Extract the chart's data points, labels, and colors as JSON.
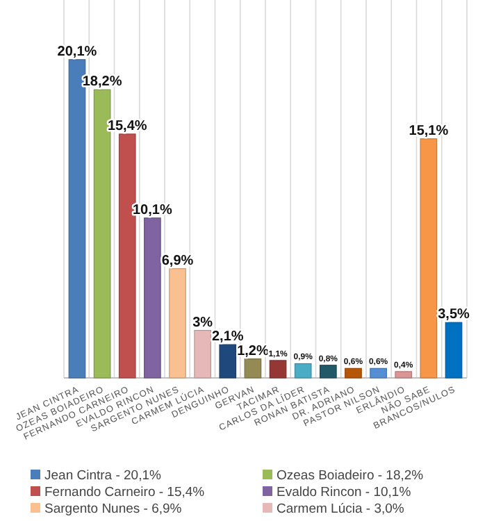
{
  "chart_data": {
    "type": "bar",
    "categories": [
      "JEAN CINTRA",
      "OZEAS BOIADEIRO",
      "FERNANDO CARNEIRO",
      "EVALDO RINCON",
      "SARGENTO NUNES",
      "CARMEM LÚCIA",
      "DENGUINHO",
      "GERVAN",
      "TACIMAR",
      "CARLOS DA LÍDER",
      "RONAN BATISTA",
      "DR. ADRIANO",
      "PASTOR NILSON",
      "ERLÂNDIO",
      "NÃO SABE",
      "BRANCOS/NULOS"
    ],
    "series": [
      {
        "name": "Jean Cintra - 20,1%",
        "color": "#4a7ebb",
        "values": [
          20.1,
          null,
          null,
          null,
          null,
          null,
          null,
          null,
          null,
          null,
          null,
          null,
          null,
          null,
          null,
          null
        ],
        "value_labels": [
          "20,1%",
          null,
          null,
          null,
          null,
          null,
          null,
          null,
          null,
          null,
          null,
          null,
          null,
          null,
          null,
          null
        ]
      },
      {
        "name": "Ozeas Boiadeiro - 18,2%",
        "color": "#9bbb59",
        "values": [
          null,
          18.2,
          null,
          null,
          null,
          null,
          null,
          null,
          null,
          null,
          null,
          null,
          null,
          null,
          null,
          null
        ],
        "value_labels": [
          null,
          "18,2%",
          null,
          null,
          null,
          null,
          null,
          null,
          null,
          null,
          null,
          null,
          null,
          null,
          null,
          null
        ]
      },
      {
        "name": "Fernando Carneiro - 15,4%",
        "color": "#c0504d",
        "values": [
          null,
          null,
          15.4,
          null,
          null,
          null,
          null,
          null,
          null,
          null,
          null,
          null,
          null,
          null,
          null,
          null
        ],
        "value_labels": [
          null,
          null,
          "15,4%",
          null,
          null,
          null,
          null,
          null,
          null,
          null,
          null,
          null,
          null,
          null,
          null,
          null
        ]
      },
      {
        "name": "Evaldo Rincon - 10,1%",
        "color": "#8064a2",
        "values": [
          null,
          null,
          null,
          10.1,
          null,
          null,
          null,
          null,
          null,
          null,
          null,
          null,
          null,
          null,
          null,
          null
        ],
        "value_labels": [
          null,
          null,
          null,
          "10,1%",
          null,
          null,
          null,
          null,
          null,
          null,
          null,
          null,
          null,
          null,
          null,
          null
        ]
      },
      {
        "name": "Sargento Nunes - 6,9%",
        "color": "#fac090",
        "values": [
          null,
          null,
          null,
          null,
          6.9,
          null,
          null,
          null,
          null,
          null,
          null,
          null,
          null,
          null,
          null,
          null
        ],
        "value_labels": [
          null,
          null,
          null,
          null,
          "6,9%",
          null,
          null,
          null,
          null,
          null,
          null,
          null,
          null,
          null,
          null,
          null
        ]
      },
      {
        "name": "Carmem Lúcia - 3,0%",
        "color": "#e6b9b8",
        "values": [
          null,
          null,
          null,
          null,
          null,
          3,
          null,
          null,
          null,
          null,
          null,
          null,
          null,
          null,
          null,
          null
        ],
        "value_labels": [
          null,
          null,
          null,
          null,
          null,
          "3%",
          null,
          null,
          null,
          null,
          null,
          null,
          null,
          null,
          null,
          null
        ]
      },
      {
        "color": "#1f497d",
        "values": [
          null,
          null,
          null,
          null,
          null,
          null,
          2.1,
          null,
          null,
          null,
          null,
          null,
          null,
          null,
          null,
          null
        ],
        "value_labels": [
          null,
          null,
          null,
          null,
          null,
          null,
          "2,1%",
          null,
          null,
          null,
          null,
          null,
          null,
          null,
          null,
          null
        ]
      },
      {
        "color": "#948a54",
        "values": [
          null,
          null,
          null,
          null,
          null,
          null,
          null,
          1.2,
          null,
          null,
          null,
          null,
          null,
          null,
          null,
          null
        ],
        "value_labels": [
          null,
          null,
          null,
          null,
          null,
          null,
          null,
          "1,2%",
          null,
          null,
          null,
          null,
          null,
          null,
          null,
          null
        ]
      },
      {
        "color": "#953735",
        "values": [
          null,
          null,
          null,
          null,
          null,
          null,
          null,
          null,
          1.1,
          null,
          null,
          null,
          null,
          null,
          null,
          null
        ],
        "value_labels": [
          null,
          null,
          null,
          null,
          null,
          null,
          null,
          null,
          "1,1%",
          null,
          null,
          null,
          null,
          null,
          null,
          null
        ]
      },
      {
        "color": "#4bacc6",
        "values": [
          null,
          null,
          null,
          null,
          null,
          null,
          null,
          null,
          null,
          0.9,
          null,
          null,
          null,
          null,
          null,
          null
        ],
        "value_labels": [
          null,
          null,
          null,
          null,
          null,
          null,
          null,
          null,
          null,
          "0,9%",
          null,
          null,
          null,
          null,
          null,
          null
        ]
      },
      {
        "color": "#215968",
        "values": [
          null,
          null,
          null,
          null,
          null,
          null,
          null,
          null,
          null,
          null,
          0.8,
          null,
          null,
          null,
          null,
          null
        ],
        "value_labels": [
          null,
          null,
          null,
          null,
          null,
          null,
          null,
          null,
          null,
          null,
          "0,8%",
          null,
          null,
          null,
          null,
          null
        ]
      },
      {
        "color": "#b65708",
        "values": [
          null,
          null,
          null,
          null,
          null,
          null,
          null,
          null,
          null,
          null,
          null,
          0.6,
          null,
          null,
          null,
          null
        ],
        "value_labels": [
          null,
          null,
          null,
          null,
          null,
          null,
          null,
          null,
          null,
          null,
          null,
          "0,6%",
          null,
          null,
          null,
          null
        ]
      },
      {
        "color": "#558ed5",
        "values": [
          null,
          null,
          null,
          null,
          null,
          null,
          null,
          null,
          null,
          null,
          null,
          null,
          0.6,
          null,
          null,
          null
        ],
        "value_labels": [
          null,
          null,
          null,
          null,
          null,
          null,
          null,
          null,
          null,
          null,
          null,
          null,
          "0,6%",
          null,
          null,
          null
        ]
      },
      {
        "color": "#d99694",
        "values": [
          null,
          null,
          null,
          null,
          null,
          null,
          null,
          null,
          null,
          null,
          null,
          null,
          null,
          0.4,
          null,
          null
        ],
        "value_labels": [
          null,
          null,
          null,
          null,
          null,
          null,
          null,
          null,
          null,
          null,
          null,
          null,
          null,
          "0,4%",
          null,
          null
        ]
      },
      {
        "color": "#f79646",
        "values": [
          null,
          null,
          null,
          null,
          null,
          null,
          null,
          null,
          null,
          null,
          null,
          null,
          null,
          null,
          15.1,
          null
        ],
        "value_labels": [
          null,
          null,
          null,
          null,
          null,
          null,
          null,
          null,
          null,
          null,
          null,
          null,
          null,
          null,
          "15,1%",
          null
        ]
      },
      {
        "color": "#0070c0",
        "values": [
          null,
          null,
          null,
          null,
          null,
          null,
          null,
          null,
          null,
          null,
          null,
          null,
          null,
          null,
          null,
          3.5
        ],
        "value_labels": [
          null,
          null,
          null,
          null,
          null,
          null,
          null,
          null,
          null,
          null,
          null,
          null,
          null,
          null,
          null,
          "3,5%"
        ]
      }
    ],
    "grid": "x",
    "legend": "bottom"
  }
}
